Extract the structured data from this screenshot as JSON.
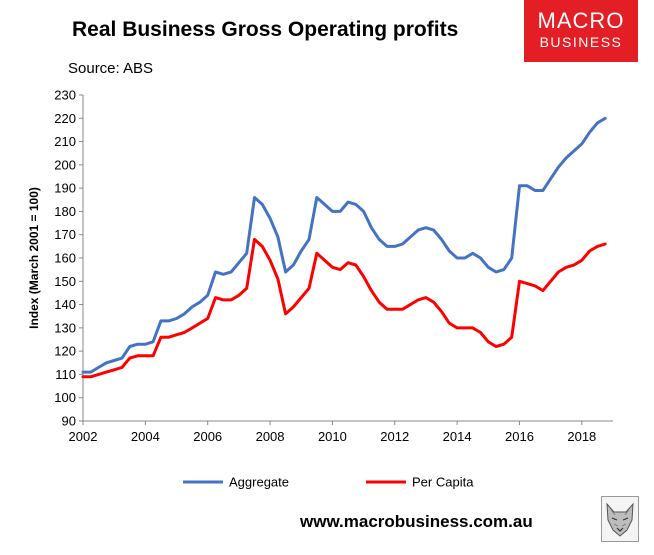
{
  "header": {
    "title": "Real Business Gross Operating profits",
    "source": "Source: ABS"
  },
  "logo": {
    "line1": "MACRO",
    "line2": "BUSINESS",
    "color": "#e31e24"
  },
  "footer": {
    "url": "www.macrobusiness.com.au"
  },
  "chart_data": {
    "type": "line",
    "title": "Real Business Gross Operating profits",
    "ylabel": "Index (March 2001 = 100)",
    "xlim": [
      2002,
      2019
    ],
    "ylim": [
      90,
      230
    ],
    "xticks": [
      2002,
      2004,
      2006,
      2008,
      2010,
      2012,
      2014,
      2016,
      2018
    ],
    "yticks": [
      90,
      100,
      110,
      120,
      130,
      140,
      150,
      160,
      170,
      180,
      190,
      200,
      210,
      220,
      230
    ],
    "grid": false,
    "legend": "bottom",
    "series": [
      {
        "name": "Aggregate",
        "color": "#4472c4",
        "x": [
          2002.0,
          2002.25,
          2002.5,
          2002.75,
          2003.0,
          2003.25,
          2003.5,
          2003.75,
          2004.0,
          2004.25,
          2004.5,
          2004.75,
          2005.0,
          2005.25,
          2005.5,
          2005.75,
          2006.0,
          2006.25,
          2006.5,
          2006.75,
          2007.0,
          2007.25,
          2007.5,
          2007.75,
          2008.0,
          2008.25,
          2008.5,
          2008.75,
          2009.0,
          2009.25,
          2009.5,
          2009.75,
          2010.0,
          2010.25,
          2010.5,
          2010.75,
          2011.0,
          2011.25,
          2011.5,
          2011.75,
          2012.0,
          2012.25,
          2012.5,
          2012.75,
          2013.0,
          2013.25,
          2013.5,
          2013.75,
          2014.0,
          2014.25,
          2014.5,
          2014.75,
          2015.0,
          2015.25,
          2015.5,
          2015.75,
          2016.0,
          2016.25,
          2016.5,
          2016.75,
          2017.0,
          2017.25,
          2017.5,
          2017.75,
          2018.0,
          2018.25,
          2018.5,
          2018.75
        ],
        "y": [
          111,
          111,
          113,
          115,
          116,
          117,
          122,
          123,
          123,
          124,
          133,
          133,
          134,
          136,
          139,
          141,
          144,
          154,
          153,
          154,
          158,
          162,
          186,
          183,
          177,
          169,
          154,
          157,
          163,
          168,
          186,
          183,
          180,
          180,
          184,
          183,
          180,
          173,
          168,
          165,
          165,
          166,
          169,
          172,
          173,
          172,
          168,
          163,
          160,
          160,
          162,
          160,
          156,
          154,
          155,
          160,
          191,
          191,
          189,
          189,
          194,
          199,
          203,
          206,
          209,
          214,
          218,
          220
        ]
      },
      {
        "name": "Per Capita",
        "color": "#ff0000",
        "x": [
          2002.0,
          2002.25,
          2002.5,
          2002.75,
          2003.0,
          2003.25,
          2003.5,
          2003.75,
          2004.0,
          2004.25,
          2004.5,
          2004.75,
          2005.0,
          2005.25,
          2005.5,
          2005.75,
          2006.0,
          2006.25,
          2006.5,
          2006.75,
          2007.0,
          2007.25,
          2007.5,
          2007.75,
          2008.0,
          2008.25,
          2008.5,
          2008.75,
          2009.0,
          2009.25,
          2009.5,
          2009.75,
          2010.0,
          2010.25,
          2010.5,
          2010.75,
          2011.0,
          2011.25,
          2011.5,
          2011.75,
          2012.0,
          2012.25,
          2012.5,
          2012.75,
          2013.0,
          2013.25,
          2013.5,
          2013.75,
          2014.0,
          2014.25,
          2014.5,
          2014.75,
          2015.0,
          2015.25,
          2015.5,
          2015.75,
          2016.0,
          2016.25,
          2016.5,
          2016.75,
          2017.0,
          2017.25,
          2017.5,
          2017.75,
          2018.0,
          2018.25,
          2018.5,
          2018.75
        ],
        "y": [
          109,
          109,
          110,
          111,
          112,
          113,
          117,
          118,
          118,
          118,
          126,
          126,
          127,
          128,
          130,
          132,
          134,
          143,
          142,
          142,
          144,
          147,
          168,
          165,
          159,
          151,
          136,
          139,
          143,
          147,
          162,
          159,
          156,
          155,
          158,
          157,
          152,
          146,
          141,
          138,
          138,
          138,
          140,
          142,
          143,
          141,
          137,
          132,
          130,
          130,
          130,
          128,
          124,
          122,
          123,
          126,
          150,
          149,
          148,
          146,
          150,
          154,
          156,
          157,
          159,
          163,
          165,
          166
        ]
      }
    ]
  }
}
